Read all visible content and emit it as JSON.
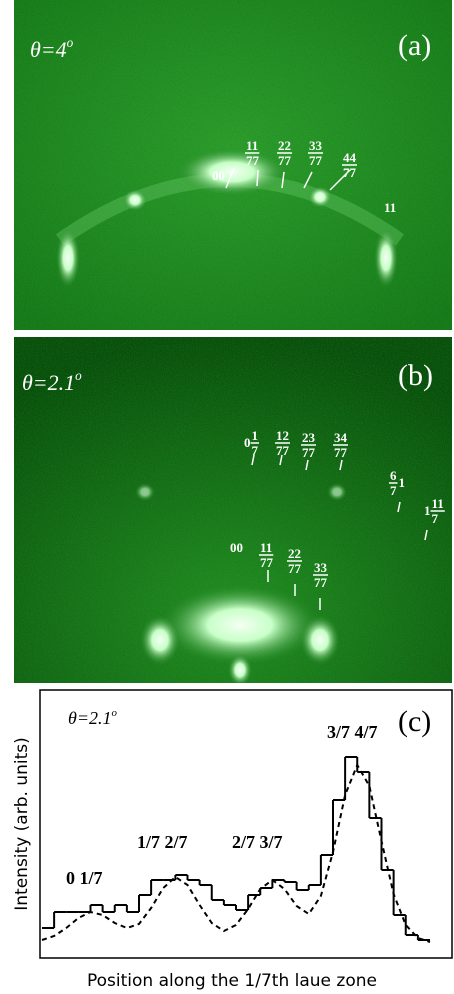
{
  "panels": [
    {
      "id": "(a)",
      "angle": "θ=4",
      "angle_sup": "o",
      "labels": [
        {
          "lead": "00"
        },
        {
          "num": "11",
          "den": "77"
        },
        {
          "num": "22",
          "den": "77"
        },
        {
          "num": "33",
          "den": "77"
        },
        {
          "num": "44",
          "den": "77"
        },
        {
          "lead": "11"
        }
      ]
    },
    {
      "id": "(b)",
      "angle": "θ=2.1",
      "angle_sup": "o",
      "labels": [
        {
          "lead": "0",
          "num": "1",
          "den": "7"
        },
        {
          "num": "12",
          "den": "77"
        },
        {
          "num": "23",
          "den": "77"
        },
        {
          "num": "34",
          "den": "77"
        },
        {
          "num": "6",
          "den": "7",
          "tail": "1"
        },
        {
          "lead": "1",
          "num": "11",
          "den": "7"
        },
        {
          "lead": "00"
        },
        {
          "num": "11",
          "den": "77"
        },
        {
          "num": "22",
          "den": "77"
        },
        {
          "num": "33",
          "den": "77"
        }
      ]
    }
  ],
  "chart_data": {
    "type": "histogram",
    "panel_label": "(c)",
    "angle": "θ=2.1",
    "angle_sup": "o",
    "y_label": "Intensity (arb. units)",
    "x_label": "Position along the 1/7th laue zone",
    "annotations": [
      "0 1/7",
      "1/7 2/7",
      "2/7 3/7",
      "3/7 4/7"
    ],
    "bins": [
      0,
      1,
      2,
      3,
      4,
      5,
      6,
      7,
      8,
      9,
      10,
      11,
      12,
      13,
      14,
      15,
      16,
      17,
      18,
      19,
      20,
      21,
      22,
      23,
      24,
      25,
      26,
      27,
      28,
      29,
      30,
      31,
      32
    ],
    "values": [
      17,
      33,
      33,
      33,
      40,
      33,
      40,
      33,
      50,
      65,
      65,
      70,
      65,
      60,
      45,
      40,
      35,
      50,
      57,
      65,
      63,
      55,
      60,
      90,
      145,
      188,
      173,
      127,
      75,
      30,
      10,
      5
    ],
    "color": "#000000",
    "curve": {
      "x": [
        0,
        1,
        2,
        3,
        4,
        5,
        6,
        7,
        8,
        9,
        10,
        11,
        12,
        13,
        14,
        15,
        16,
        17,
        18,
        19,
        20,
        21,
        22,
        23,
        24,
        25,
        26,
        27,
        28,
        29,
        30,
        31,
        32
      ],
      "y": [
        5,
        9,
        17,
        27,
        33,
        30,
        22,
        17,
        21,
        37,
        57,
        68,
        60,
        40,
        22,
        14,
        20,
        36,
        56,
        65,
        56,
        39,
        31,
        49,
        93,
        150,
        180,
        159,
        104,
        51,
        20,
        7,
        3
      ],
      "style": "dashed",
      "color": "#000000"
    },
    "xlim": [
      0,
      32
    ],
    "ylim": [
      0,
      255
    ]
  }
}
